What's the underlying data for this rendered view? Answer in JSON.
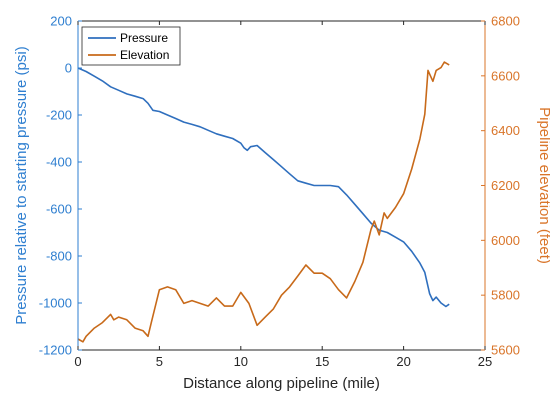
{
  "chart_data": {
    "type": "line",
    "title": "",
    "xlabel": "Distance along pipeline (mile)",
    "ylabel_left": "Pressure relative to starting pressure (psi)",
    "ylabel_right": "Pipeline elevation (feet)",
    "xlim": [
      0,
      25
    ],
    "ylim_left": [
      -1200,
      200
    ],
    "ylim_right": [
      5600,
      6800
    ],
    "xticks": [
      0,
      5,
      10,
      15,
      20,
      25
    ],
    "yticks_left": [
      -1200,
      -1000,
      -800,
      -600,
      -400,
      -200,
      0,
      200
    ],
    "yticks_right": [
      5600,
      5800,
      6000,
      6200,
      6400,
      6600,
      6800
    ],
    "grid": false,
    "legend_position": "top-left",
    "colors": {
      "pressure": "#2f6fbe",
      "elevation": "#c86a1a",
      "left_axis": "#2f7fd0",
      "right_axis": "#d9752a",
      "axis": "#262626"
    },
    "series": [
      {
        "name": "Pressure",
        "axis": "left",
        "x": [
          0,
          0.5,
          1.0,
          1.5,
          2.0,
          2.5,
          3.0,
          3.5,
          4.0,
          4.3,
          4.6,
          5.0,
          5.5,
          6.0,
          6.5,
          7.0,
          7.5,
          8.0,
          8.5,
          9.0,
          9.5,
          10.0,
          10.2,
          10.4,
          10.6,
          11.0,
          11.5,
          12.0,
          12.5,
          13.0,
          13.5,
          14.0,
          14.5,
          15.0,
          15.5,
          16.0,
          16.5,
          17.0,
          17.5,
          18.0,
          18.5,
          19.0,
          19.5,
          20.0,
          20.5,
          21.0,
          21.3,
          21.6,
          21.8,
          22.0,
          22.3,
          22.6,
          22.8
        ],
        "y": [
          0,
          -15,
          -35,
          -55,
          -80,
          -95,
          -110,
          -120,
          -130,
          -150,
          -180,
          -185,
          -200,
          -215,
          -230,
          -240,
          -250,
          -265,
          -280,
          -290,
          -300,
          -320,
          -340,
          -350,
          -335,
          -330,
          -360,
          -390,
          -420,
          -450,
          -480,
          -490,
          -500,
          -500,
          -500,
          -505,
          -540,
          -580,
          -620,
          -660,
          -690,
          -700,
          -720,
          -740,
          -780,
          -830,
          -870,
          -960,
          -990,
          -975,
          -1000,
          -1015,
          -1005
        ]
      },
      {
        "name": "Elevation",
        "axis": "right",
        "x": [
          0,
          0.3,
          0.5,
          1.0,
          1.5,
          2.0,
          2.2,
          2.5,
          3.0,
          3.5,
          4.0,
          4.3,
          4.5,
          5.0,
          5.5,
          6.0,
          6.5,
          7.0,
          7.5,
          8.0,
          8.5,
          9.0,
          9.5,
          10.0,
          10.5,
          11.0,
          11.5,
          12.0,
          12.5,
          13.0,
          13.5,
          14.0,
          14.5,
          15.0,
          15.5,
          16.0,
          16.5,
          17.0,
          17.5,
          18.0,
          18.2,
          18.5,
          18.8,
          19.0,
          19.5,
          20.0,
          20.5,
          21.0,
          21.3,
          21.5,
          21.8,
          22.0,
          22.3,
          22.5,
          22.8
        ],
        "y": [
          5640,
          5630,
          5650,
          5680,
          5700,
          5730,
          5710,
          5720,
          5710,
          5680,
          5670,
          5650,
          5700,
          5820,
          5830,
          5820,
          5770,
          5780,
          5770,
          5760,
          5790,
          5760,
          5760,
          5810,
          5770,
          5690,
          5720,
          5750,
          5800,
          5830,
          5870,
          5910,
          5880,
          5880,
          5860,
          5820,
          5790,
          5850,
          5920,
          6040,
          6070,
          6020,
          6100,
          6080,
          6120,
          6170,
          6260,
          6370,
          6460,
          6620,
          6580,
          6620,
          6630,
          6650,
          6640
        ]
      }
    ]
  }
}
